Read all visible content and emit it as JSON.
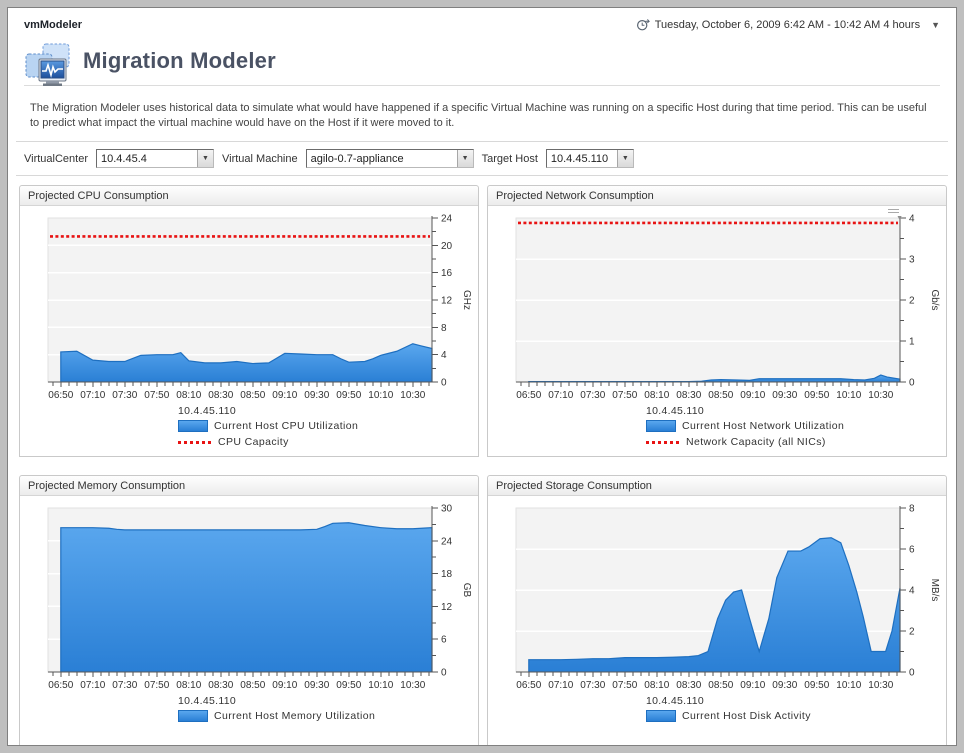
{
  "window": {
    "app_title": "vmModeler"
  },
  "timebar": {
    "text": "Tuesday, October 6, 2009 6:42 AM - 10:42 AM 4 hours",
    "caret": "▼"
  },
  "page": {
    "title": "Migration Modeler",
    "description": "The Migration Modeler uses historical data to simulate what would have happened if a specific Virtual Machine was running on a specific Host during that time period. This can be useful to predict what impact the virtual machine would have on the Host if it were moved to it."
  },
  "controls": [
    {
      "label": "VirtualCenter",
      "value": "10.4.45.4"
    },
    {
      "label": "Virtual Machine",
      "value": "agilo-0.7-appliance"
    },
    {
      "label": "Target Host",
      "value": "10.4.45.110"
    }
  ],
  "select_arrow": "▼",
  "colors": {
    "area_fill_top": "#5aa7ee",
    "area_fill_bottom": "#2a7fd5",
    "area_stroke": "#1e6fc0",
    "capacity_red": "#e81313",
    "plot_bg": "#f3f3f3",
    "grid_major": "#ffffff",
    "axis": "#555555",
    "tick_text": "#333333"
  },
  "chart_data": [
    {
      "type": "area",
      "title": "Projected CPU Consumption",
      "ylabel": "GHz",
      "ylim": [
        0,
        24
      ],
      "y_major": 4,
      "y_minor": 2,
      "x_domain_minutes": [
        0,
        240
      ],
      "x_start_time": "06:42",
      "x_tick_labels": [
        "06:50",
        "07:10",
        "07:30",
        "07:50",
        "08:10",
        "08:30",
        "08:50",
        "09:10",
        "09:30",
        "09:50",
        "10:10",
        "10:30"
      ],
      "x_tick_minutes": [
        8,
        28,
        48,
        68,
        88,
        108,
        128,
        148,
        168,
        188,
        208,
        228
      ],
      "host": "10.4.45.110",
      "capacity": {
        "label": "CPU Capacity",
        "value": 21.3
      },
      "series": [
        {
          "name": "Current Host CPU Utilization",
          "x_minutes": [
            8,
            18,
            28,
            38,
            48,
            58,
            68,
            78,
            83,
            88,
            98,
            108,
            118,
            128,
            138,
            143,
            148,
            158,
            168,
            178,
            183,
            188,
            198,
            203,
            208,
            218,
            228,
            233,
            240
          ],
          "values": [
            4.4,
            4.5,
            3.2,
            3.0,
            3.0,
            3.9,
            4.0,
            4.0,
            4.3,
            3.1,
            2.8,
            2.8,
            3.0,
            2.7,
            2.8,
            3.5,
            4.2,
            4.1,
            4.0,
            4.0,
            3.4,
            2.9,
            3.0,
            3.4,
            3.9,
            4.5,
            5.6,
            5.3,
            4.9
          ]
        }
      ],
      "legend": [
        {
          "swatch": "series",
          "label": "Current Host CPU Utilization"
        },
        {
          "swatch": "capacity",
          "label": "CPU Capacity"
        }
      ]
    },
    {
      "type": "area",
      "title": "Projected Network Consumption",
      "ylabel": "Gb/s",
      "ylim": [
        0,
        4
      ],
      "y_major": 1,
      "y_minor": 0.5,
      "x_domain_minutes": [
        0,
        240
      ],
      "x_start_time": "06:42",
      "x_tick_labels": [
        "06:50",
        "07:10",
        "07:30",
        "07:50",
        "08:10",
        "08:30",
        "08:50",
        "09:10",
        "09:30",
        "09:50",
        "10:10",
        "10:30"
      ],
      "x_tick_minutes": [
        8,
        28,
        48,
        68,
        88,
        108,
        128,
        148,
        168,
        188,
        208,
        228
      ],
      "host": "10.4.45.110",
      "has_menu_icon": true,
      "capacity": {
        "label": "Network Capacity (all NICs)",
        "value": 3.88
      },
      "series": [
        {
          "name": "Current Host Network Utilization",
          "x_minutes": [
            8,
            28,
            48,
            68,
            88,
            108,
            116,
            122,
            128,
            138,
            146,
            152,
            163,
            173,
            183,
            193,
            203,
            211,
            218,
            224,
            228,
            232,
            240
          ],
          "values": [
            0.01,
            0.01,
            0.01,
            0.01,
            0.01,
            0.01,
            0.02,
            0.05,
            0.06,
            0.05,
            0.04,
            0.08,
            0.08,
            0.08,
            0.08,
            0.08,
            0.08,
            0.06,
            0.05,
            0.09,
            0.17,
            0.12,
            0.07
          ]
        }
      ],
      "legend": [
        {
          "swatch": "series",
          "label": "Current Host Network Utilization"
        },
        {
          "swatch": "capacity",
          "label": "Network Capacity (all NICs)"
        }
      ]
    },
    {
      "type": "area",
      "title": "Projected Memory Consumption",
      "ylabel": "GB",
      "ylim": [
        0,
        30
      ],
      "y_major": 6,
      "y_minor": 3,
      "x_domain_minutes": [
        0,
        240
      ],
      "x_start_time": "06:42",
      "x_tick_labels": [
        "06:50",
        "07:10",
        "07:30",
        "07:50",
        "08:10",
        "08:30",
        "08:50",
        "09:10",
        "09:30",
        "09:50",
        "10:10",
        "10:30"
      ],
      "x_tick_minutes": [
        8,
        28,
        48,
        68,
        88,
        108,
        128,
        148,
        168,
        188,
        208,
        228
      ],
      "host": "10.4.45.110",
      "series": [
        {
          "name": "Current Host Memory Utilization",
          "x_minutes": [
            8,
            18,
            28,
            38,
            43,
            48,
            58,
            78,
            98,
            118,
            138,
            158,
            168,
            173,
            178,
            188,
            198,
            208,
            218,
            228,
            240
          ],
          "values": [
            26.4,
            26.4,
            26.4,
            26.3,
            26.1,
            26.0,
            26.0,
            26.0,
            26.0,
            26.0,
            26.0,
            26.0,
            26.1,
            26.6,
            27.2,
            27.3,
            26.8,
            26.4,
            26.2,
            26.2,
            26.4
          ]
        }
      ],
      "legend": [
        {
          "swatch": "series",
          "label": "Current Host Memory Utilization"
        }
      ]
    },
    {
      "type": "area",
      "title": "Projected Storage Consumption",
      "ylabel": "MB/s",
      "ylim": [
        0,
        8
      ],
      "y_major": 2,
      "y_minor": 1,
      "x_domain_minutes": [
        0,
        240
      ],
      "x_start_time": "06:42",
      "x_tick_labels": [
        "06:50",
        "07:10",
        "07:30",
        "07:50",
        "08:10",
        "08:30",
        "08:50",
        "09:10",
        "09:30",
        "09:50",
        "10:10",
        "10:30"
      ],
      "x_tick_minutes": [
        8,
        28,
        48,
        68,
        88,
        108,
        128,
        148,
        168,
        188,
        208,
        228
      ],
      "host": "10.4.45.110",
      "series": [
        {
          "name": "Current Host Disk Activity",
          "x_minutes": [
            8,
            18,
            28,
            38,
            48,
            58,
            68,
            78,
            88,
            98,
            108,
            114,
            120,
            126,
            131,
            136,
            141,
            146,
            152,
            158,
            163,
            170,
            178,
            183,
            190,
            197,
            203,
            208,
            213,
            217,
            222,
            228,
            231,
            235,
            240
          ],
          "values": [
            0.6,
            0.6,
            0.6,
            0.62,
            0.65,
            0.65,
            0.7,
            0.7,
            0.7,
            0.72,
            0.75,
            0.8,
            1.0,
            2.6,
            3.5,
            3.9,
            4.0,
            2.6,
            1.0,
            2.6,
            4.6,
            5.9,
            5.9,
            6.1,
            6.5,
            6.55,
            6.3,
            5.2,
            3.9,
            2.7,
            1.0,
            1.0,
            1.0,
            2.0,
            4.1
          ]
        }
      ],
      "legend": [
        {
          "swatch": "series",
          "label": "Current Host Disk Activity"
        }
      ]
    }
  ]
}
